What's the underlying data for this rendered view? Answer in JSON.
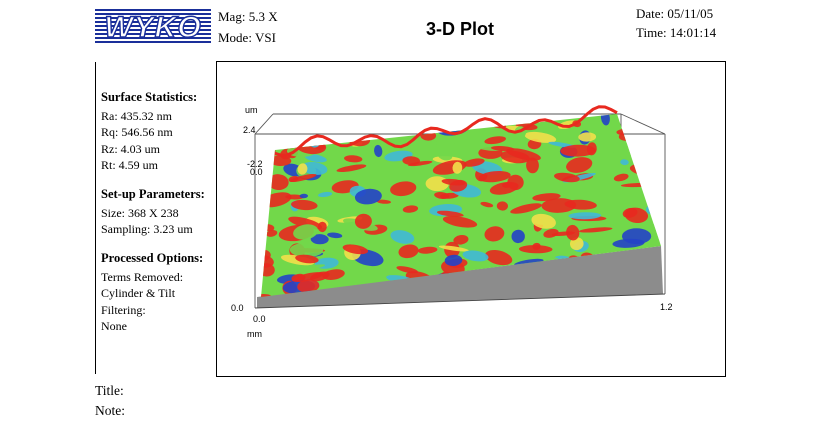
{
  "header": {
    "logo_text": "WYKO",
    "mag": "Mag: 5.3 X",
    "mode": "Mode: VSI",
    "plot_title": "3-D Plot",
    "date": "Date: 05/11/05",
    "time": "Time: 14:01:14"
  },
  "surface_statistics": {
    "heading": "Surface Statistics:",
    "ra": "Ra:  435.32 nm",
    "rq": "Rq:  546.56 nm",
    "rz": "Rz:  4.03 um",
    "rt": "Rt:  4.59 um"
  },
  "setup_parameters": {
    "heading": "Set-up Parameters:",
    "size": "Size: 368 X 238",
    "sampling": "Sampling:  3.23 um"
  },
  "processed_options": {
    "heading": "Processed Options:",
    "terms_removed_label": "Terms Removed:",
    "terms_removed_value": "Cylinder & Tilt",
    "filtering_label": "Filtering:",
    "filtering_value": "None"
  },
  "plot": {
    "z_unit": "um",
    "z_max_label": "2.4",
    "z_min_label": "-2.2",
    "z_mid_label": "0.0",
    "base_label": "0.0",
    "x_start_label": "0.0",
    "x_end_label": "1.2",
    "x_unit": "mm",
    "colors": {
      "high": "#e8291f",
      "upper": "#f2e04a",
      "mid": "#72d84a",
      "lower": "#40b9d6",
      "low": "#2443c8",
      "base": "#8c8c8c"
    }
  },
  "footer": {
    "title_label": "Title:",
    "note_label": "Note:"
  }
}
